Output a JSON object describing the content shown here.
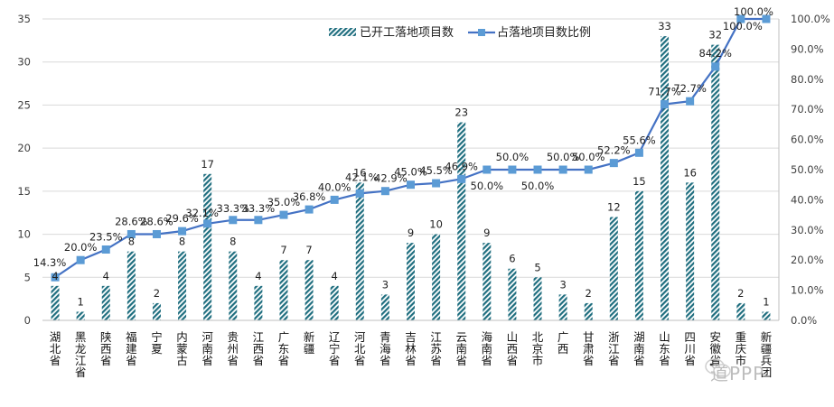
{
  "chart_data": {
    "type": "bar",
    "title": "",
    "xlabel": "",
    "ylabel": "",
    "ylim": [
      0,
      35
    ],
    "y_ticks": [
      "0",
      "5",
      "10",
      "15",
      "20",
      "25",
      "30",
      "35"
    ],
    "y2lim": [
      0,
      1.0
    ],
    "y2_ticks": [
      "0.0%",
      "10.0%",
      "20.0%",
      "30.0%",
      "40.0%",
      "50.0%",
      "60.0%",
      "70.0%",
      "80.0%",
      "90.0%",
      "100.0%"
    ],
    "grid": true,
    "legend_position": "top-center",
    "categories": [
      "湖北省",
      "黑龙江省",
      "陕西省",
      "福建省",
      "宁夏",
      "内蒙古",
      "河南省",
      "贵州省",
      "江西省",
      "广东省",
      "新疆",
      "辽宁省",
      "河北省",
      "青海省",
      "吉林省",
      "江苏省",
      "云南省",
      "海南省",
      "山西省",
      "北京市",
      "广西",
      "甘肃省",
      "浙江省",
      "湖南省",
      "山东省",
      "四川省",
      "安徽省",
      "重庆市",
      "新疆兵团"
    ],
    "series": [
      {
        "name": "已开工落地项目数",
        "type": "bar",
        "axis": "primary",
        "color": "#1f6e7f",
        "pattern": "diagonal-hatch",
        "values": [
          4,
          1,
          4,
          8,
          2,
          8,
          17,
          8,
          4,
          7,
          7,
          4,
          16,
          3,
          9,
          10,
          23,
          9,
          6,
          5,
          3,
          2,
          12,
          15,
          33,
          16,
          32,
          2,
          1
        ],
        "labels": [
          "4",
          "1",
          "4",
          "8",
          "2",
          "8",
          "17",
          "8",
          "4",
          "7",
          "7",
          "4",
          "16",
          "3",
          "9",
          "10",
          "23",
          "9",
          "6",
          "5",
          "3",
          "2",
          "12",
          "15",
          "33",
          "16",
          "32",
          "2",
          "1"
        ]
      },
      {
        "name": "占落地项目数比例",
        "type": "line",
        "axis": "secondary",
        "color": "#4472c4",
        "marker_color": "#5b9bd5",
        "marker": "square",
        "values": [
          0.143,
          0.2,
          0.235,
          0.286,
          0.286,
          0.296,
          0.321,
          0.333,
          0.333,
          0.35,
          0.368,
          0.4,
          0.421,
          0.429,
          0.45,
          0.455,
          0.469,
          0.5,
          0.5,
          0.5,
          0.5,
          0.5,
          0.522,
          0.556,
          0.717,
          0.727,
          0.842,
          1.0,
          1.0
        ],
        "labels": [
          "14.3%",
          "20.0%",
          "23.5%",
          "28.6%",
          "28.6%",
          "29.6%",
          "32.1%",
          "33.3%",
          "33.3%",
          "35.0%",
          "36.8%",
          "40.0%",
          "42.1%",
          "42.9%",
          "45.0%",
          "45.5%",
          "46.9%",
          "50.0%",
          "50.0%",
          "50.0%",
          "50.0%",
          "50.0%",
          "52.2%",
          "55.6%",
          "71.7%",
          "72.7%",
          "84.2%",
          "100.0%",
          "100.0%"
        ]
      }
    ]
  },
  "watermark": {
    "text": "道PPP",
    "icon": "wechat-logo-icon"
  }
}
